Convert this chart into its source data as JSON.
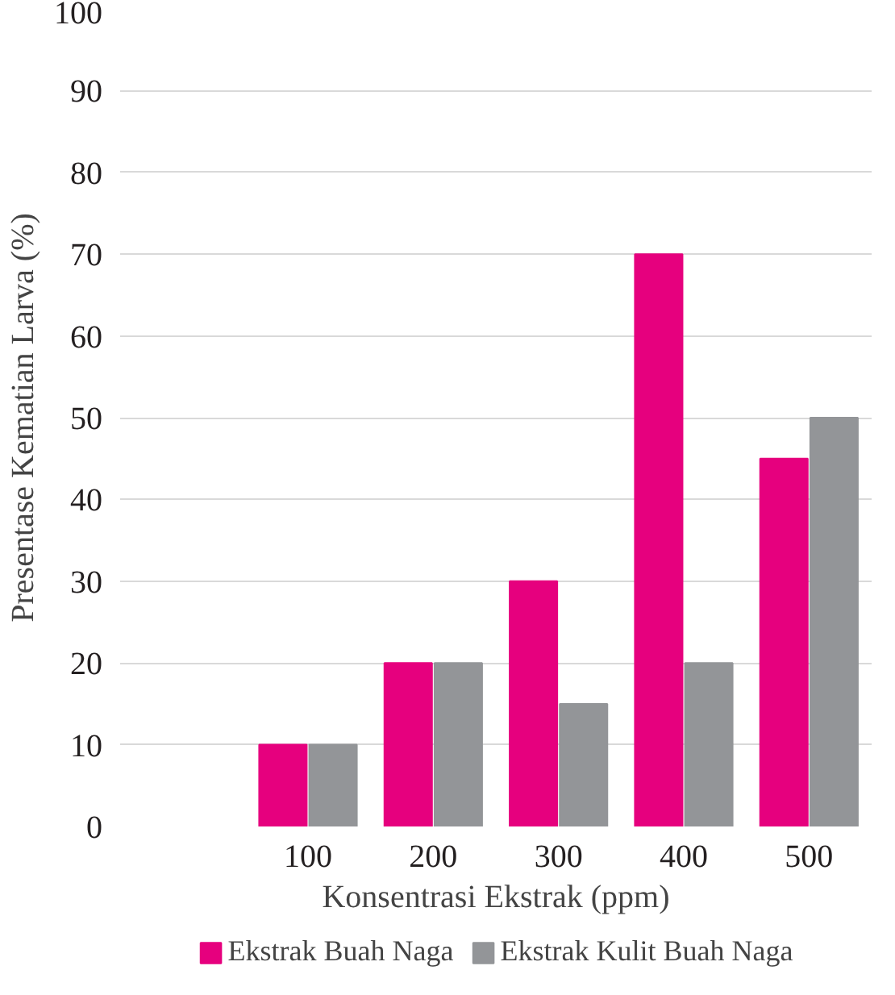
{
  "chart_data": {
    "type": "bar",
    "xlabel": "Konsentrasi Ekstrak (ppm)",
    "ylabel": "Presentase Kematian Larva (%)",
    "categories": [
      null,
      "100",
      "200",
      "300",
      "400",
      "500"
    ],
    "series": [
      {
        "name": "Ekstrak Buah Naga",
        "color": "#e6007e",
        "values": [
          null,
          10,
          20,
          30,
          70,
          45
        ]
      },
      {
        "name": "Ekstrak Kulit Buah Naga",
        "color": "#939598",
        "values": [
          null,
          10,
          20,
          15,
          20,
          50
        ]
      }
    ],
    "ylim": [
      0,
      100
    ],
    "yticks": [
      0,
      10,
      20,
      30,
      40,
      50,
      60,
      70,
      80,
      90,
      100
    ],
    "grid": "y",
    "legend": "bottom"
  }
}
